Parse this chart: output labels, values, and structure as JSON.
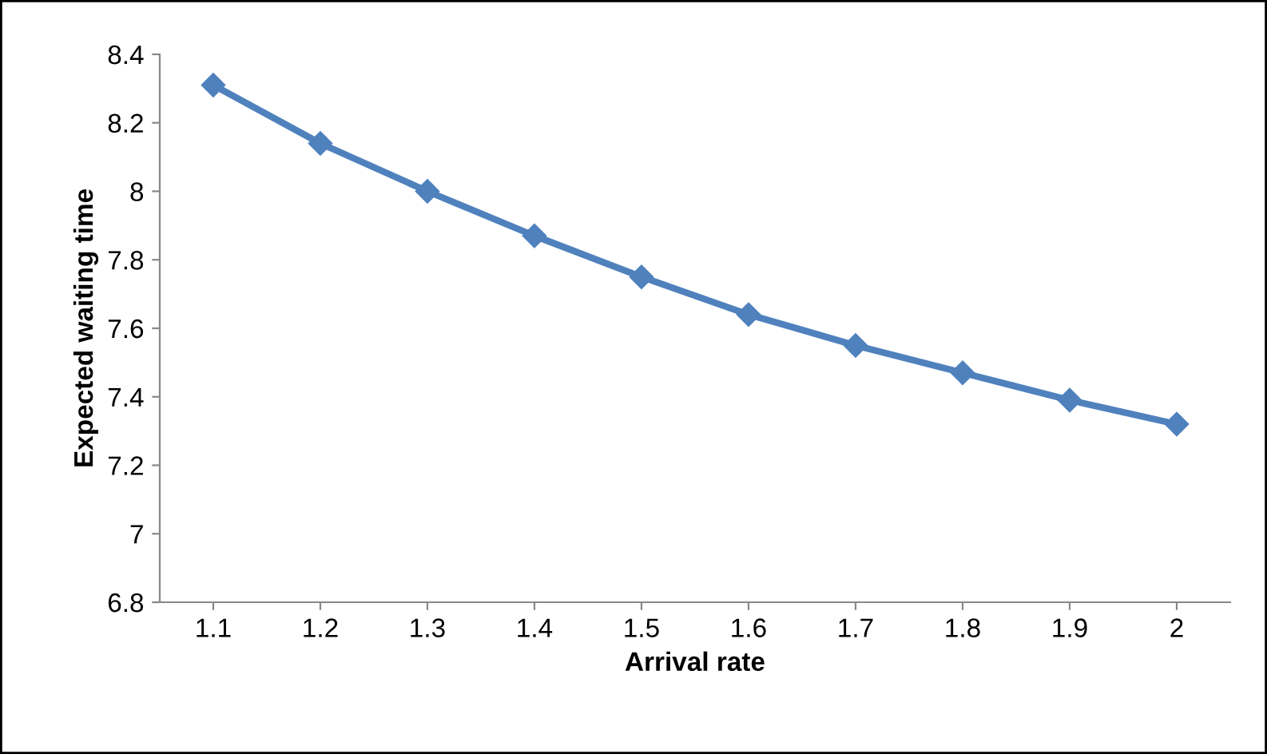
{
  "chart_data": {
    "type": "line",
    "xlabel": "Arrival rate",
    "ylabel": "Expected waiting time",
    "categories": [
      "1.1",
      "1.2",
      "1.3",
      "1.4",
      "1.5",
      "1.6",
      "1.7",
      "1.8",
      "1.9",
      "2"
    ],
    "series": [
      {
        "color": "#4f81bd",
        "values": [
          8.31,
          8.14,
          8.0,
          7.87,
          7.75,
          7.64,
          7.55,
          7.47,
          7.39,
          7.32
        ]
      }
    ],
    "ylim": [
      6.8,
      8.4
    ],
    "yticks": [
      6.8,
      7,
      7.2,
      7.4,
      7.6,
      7.8,
      8,
      8.2,
      8.4
    ],
    "grid": false,
    "marker": "diamond",
    "line_style": "solid"
  }
}
